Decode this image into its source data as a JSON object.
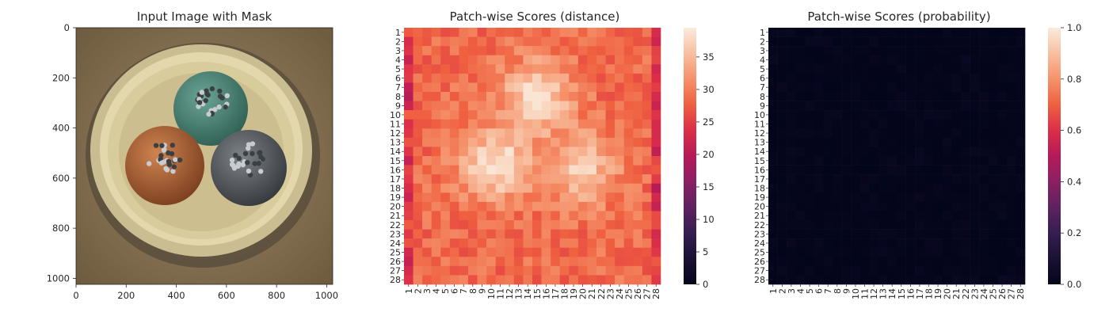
{
  "chart_data": [
    {
      "type": "image",
      "title": "Input Image with Mask",
      "xlim": [
        0,
        1024
      ],
      "ylim": [
        1024,
        0
      ],
      "xticks": [
        0,
        200,
        400,
        600,
        800,
        1000
      ],
      "yticks": [
        0,
        200,
        400,
        600,
        800,
        1000
      ],
      "image_content": {
        "background": "#8a7556",
        "objects": [
          {
            "name": "teal-cable",
            "center": [
              520,
              330
            ],
            "radius": 145,
            "color": "#4d8a78"
          },
          {
            "name": "orange-cable",
            "center": [
              355,
              545
            ],
            "radius": 155,
            "color": "#b56a3d"
          },
          {
            "name": "gray-cable",
            "center": [
              690,
              560
            ],
            "radius": 150,
            "color": "#5b5f63"
          }
        ]
      }
    },
    {
      "type": "heatmap",
      "title": "Patch-wise Scores (distance)",
      "rows": 28,
      "cols": 28,
      "row_labels": [
        "1",
        "2",
        "3",
        "4",
        "5",
        "6",
        "7",
        "8",
        "9",
        "10",
        "11",
        "12",
        "13",
        "14",
        "15",
        "16",
        "17",
        "18",
        "19",
        "20",
        "21",
        "22",
        "23",
        "24",
        "25",
        "26",
        "27",
        "28"
      ],
      "col_labels": [
        "1",
        "2",
        "3",
        "4",
        "5",
        "6",
        "7",
        "8",
        "9",
        "10",
        "11",
        "12",
        "13",
        "14",
        "15",
        "16",
        "17",
        "18",
        "19",
        "20",
        "21",
        "22",
        "23",
        "24",
        "25",
        "26",
        "27",
        "28"
      ],
      "vmin": 0,
      "vmax": 39.5,
      "colorbar_ticks": [
        "0",
        "5",
        "10",
        "15",
        "20",
        "25",
        "30",
        "35"
      ],
      "colorbar_values": [
        0,
        5,
        10,
        15,
        20,
        25,
        30,
        35
      ],
      "typical_range": [
        23,
        39
      ],
      "high_regions": [
        {
          "row": 8,
          "col": 15,
          "peak": 38
        },
        {
          "row": 15.5,
          "col": 10.5,
          "peak": 38.5
        },
        {
          "row": 16,
          "col": 20,
          "peak": 36
        }
      ],
      "low_regions": [
        {
          "row": 14,
          "col": 28,
          "value": 21
        },
        {
          "row": 18,
          "col": 28,
          "value": 20
        },
        {
          "row": 19,
          "col": 1,
          "value": 22
        },
        {
          "row": 28,
          "col": 1,
          "value": 24
        }
      ],
      "colormap": "rocket"
    },
    {
      "type": "heatmap",
      "title": "Patch-wise Scores (probability)",
      "rows": 28,
      "cols": 28,
      "row_labels": [
        "1",
        "2",
        "3",
        "4",
        "5",
        "6",
        "7",
        "8",
        "9",
        "10",
        "11",
        "12",
        "13",
        "14",
        "15",
        "16",
        "17",
        "18",
        "19",
        "20",
        "21",
        "22",
        "23",
        "24",
        "25",
        "26",
        "27",
        "28"
      ],
      "col_labels": [
        "1",
        "2",
        "3",
        "4",
        "5",
        "6",
        "7",
        "8",
        "9",
        "10",
        "11",
        "12",
        "13",
        "14",
        "15",
        "16",
        "17",
        "18",
        "19",
        "20",
        "21",
        "22",
        "23",
        "24",
        "25",
        "26",
        "27",
        "28"
      ],
      "vmin": 0,
      "vmax": 1.0,
      "colorbar_ticks": [
        "0.0",
        "0.2",
        "0.4",
        "0.6",
        "0.8",
        "1.0"
      ],
      "colorbar_values": [
        0,
        0.2,
        0.4,
        0.6,
        0.8,
        1.0
      ],
      "value_range": [
        0.0,
        0.03
      ],
      "colormap": "rocket"
    }
  ],
  "colors": {
    "text": "#262626",
    "axis": "#262626"
  }
}
